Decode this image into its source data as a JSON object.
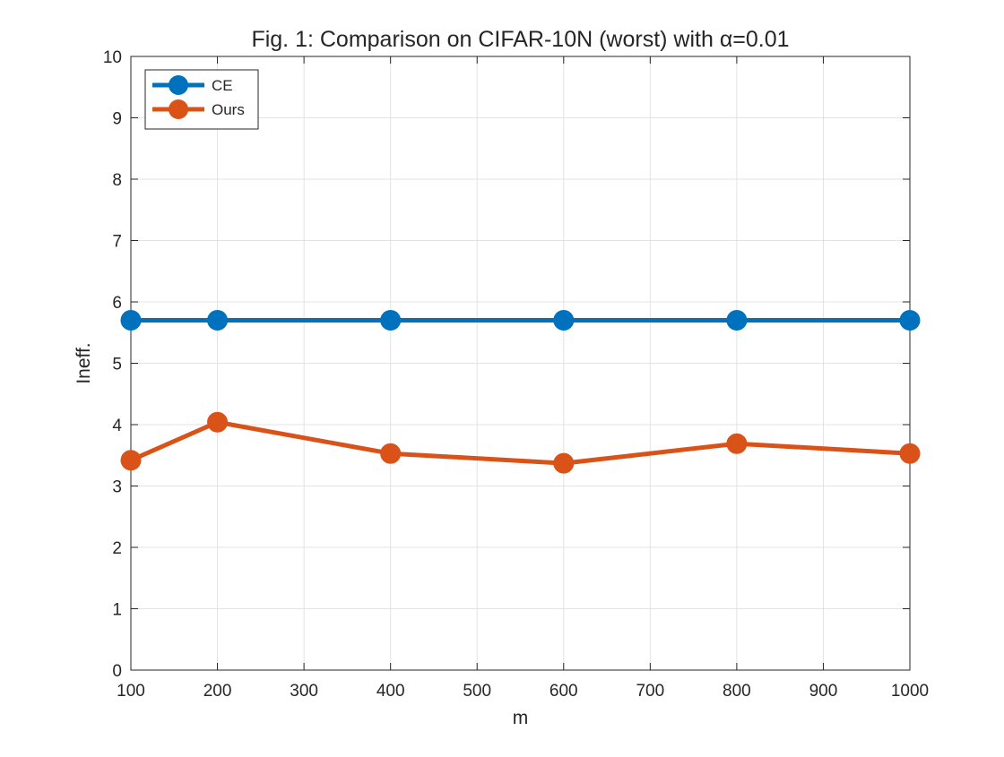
{
  "chart_data": {
    "type": "line",
    "title": "Fig. 1: Comparison on CIFAR-10N (worst) with α=0.01",
    "xlabel": "m",
    "ylabel": "Ineff.",
    "xlim": [
      100,
      1000
    ],
    "ylim": [
      0,
      10
    ],
    "xticks": [
      100,
      200,
      300,
      400,
      500,
      600,
      700,
      800,
      900,
      1000
    ],
    "yticks": [
      0,
      1,
      2,
      3,
      4,
      5,
      6,
      7,
      8,
      9,
      10
    ],
    "grid": true,
    "legend_position": "top-left",
    "x": [
      100,
      200,
      400,
      600,
      800,
      1000
    ],
    "series": [
      {
        "name": "CE",
        "color": "#0072BD",
        "marker": "circle",
        "values": [
          5.7,
          5.7,
          5.7,
          5.7,
          5.7,
          5.7
        ]
      },
      {
        "name": "Ours",
        "color": "#D95319",
        "marker": "circle",
        "values": [
          3.42,
          4.04,
          3.53,
          3.37,
          3.69,
          3.53
        ]
      }
    ]
  }
}
